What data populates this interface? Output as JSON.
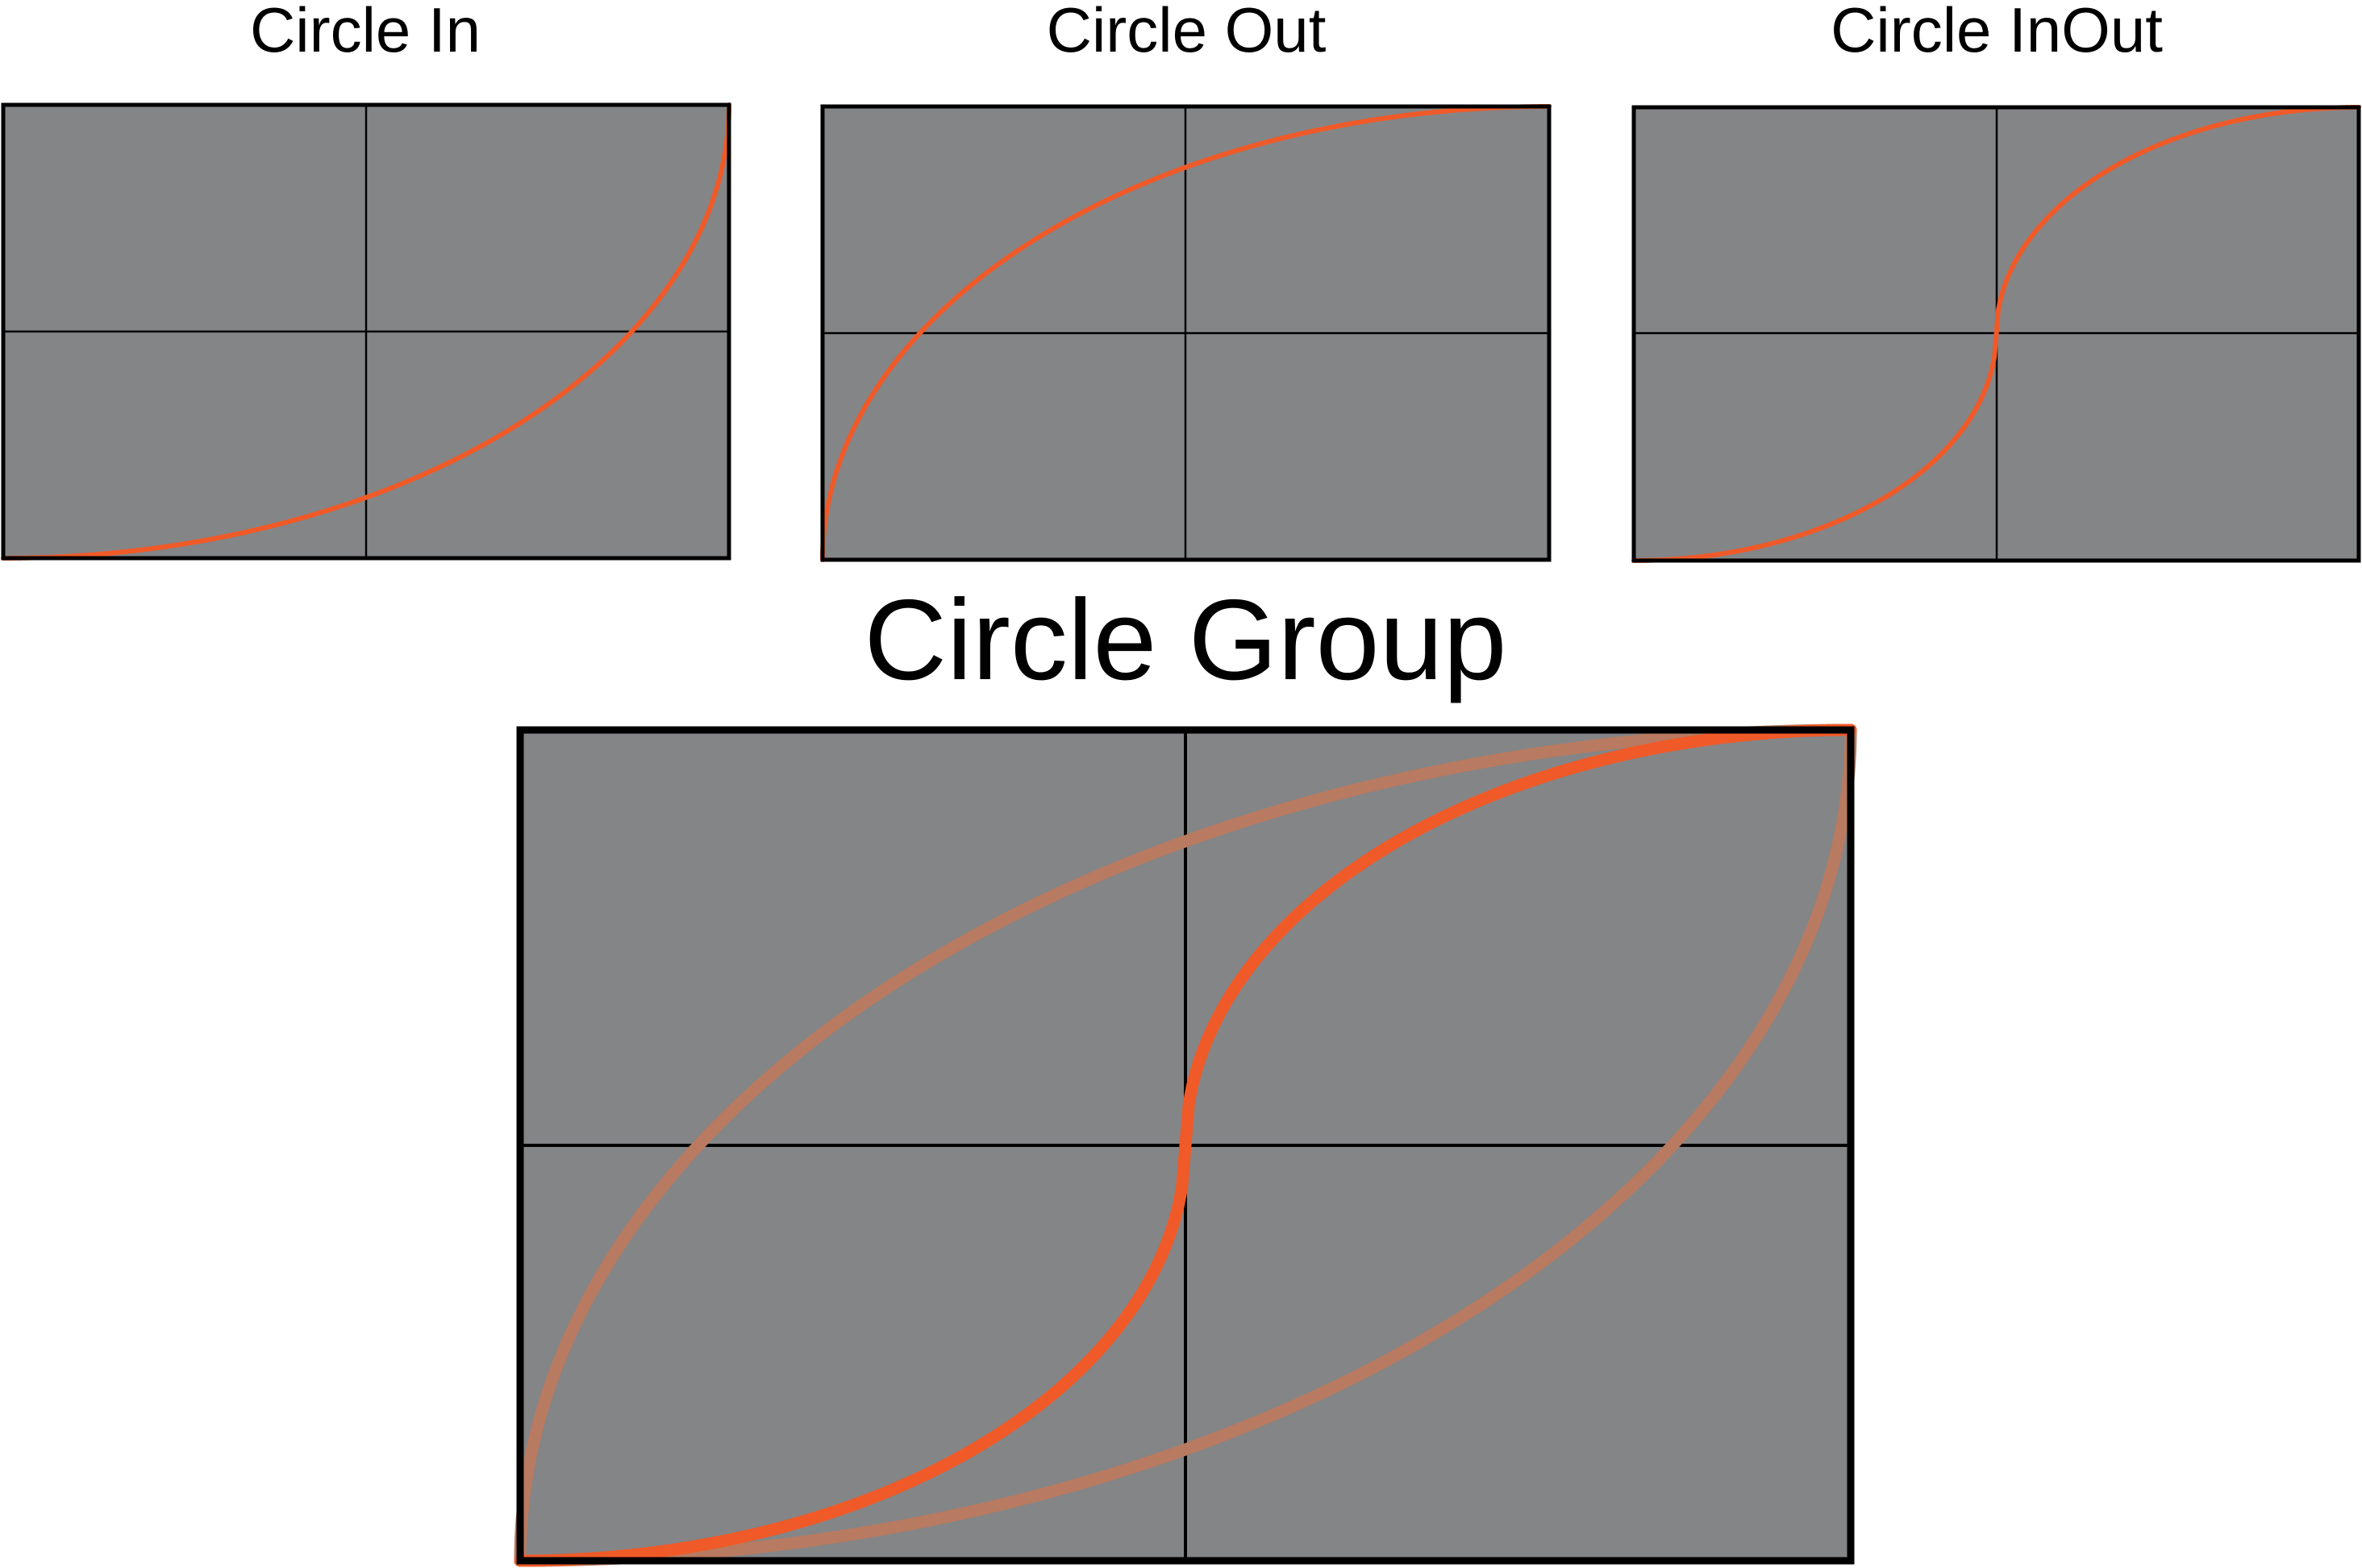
{
  "chart_data": [
    {
      "type": "line",
      "title": "Circle In",
      "xlim": [
        0,
        1
      ],
      "ylim": [
        0,
        1
      ],
      "grid": true,
      "series": [
        {
          "function": "circle-in",
          "color": "#f05a28",
          "x": [
            0,
            0.1,
            0.2,
            0.3,
            0.4,
            0.5,
            0.6,
            0.7,
            0.8,
            0.9,
            1
          ],
          "values": [
            0,
            0.005,
            0.02,
            0.046,
            0.083,
            0.134,
            0.2,
            0.286,
            0.4,
            0.564,
            1
          ]
        }
      ]
    },
    {
      "type": "line",
      "title": "Circle Out",
      "xlim": [
        0,
        1
      ],
      "ylim": [
        0,
        1
      ],
      "grid": true,
      "series": [
        {
          "function": "circle-out",
          "color": "#f05a28",
          "x": [
            0,
            0.1,
            0.2,
            0.3,
            0.4,
            0.5,
            0.6,
            0.7,
            0.8,
            0.9,
            1
          ],
          "values": [
            0,
            0.436,
            0.6,
            0.714,
            0.8,
            0.866,
            0.917,
            0.954,
            0.98,
            0.995,
            1
          ]
        }
      ]
    },
    {
      "type": "line",
      "title": "Circle InOut",
      "xlim": [
        0,
        1
      ],
      "ylim": [
        0,
        1
      ],
      "grid": true,
      "series": [
        {
          "function": "circle-inout",
          "color": "#f05a28",
          "x": [
            0,
            0.1,
            0.2,
            0.3,
            0.4,
            0.5,
            0.6,
            0.7,
            0.8,
            0.9,
            1
          ],
          "values": [
            0,
            0.01,
            0.042,
            0.1,
            0.2,
            0.5,
            0.8,
            0.9,
            0.958,
            0.99,
            1
          ]
        }
      ]
    },
    {
      "type": "line",
      "title": "Circle Group",
      "xlim": [
        0,
        1
      ],
      "ylim": [
        0,
        1
      ],
      "grid": true,
      "series": [
        {
          "function": "circle-in",
          "color": "#b87a60",
          "x": [
            0,
            0.1,
            0.2,
            0.3,
            0.4,
            0.5,
            0.6,
            0.7,
            0.8,
            0.9,
            1
          ],
          "values": [
            0,
            0.005,
            0.02,
            0.046,
            0.083,
            0.134,
            0.2,
            0.286,
            0.4,
            0.564,
            1
          ]
        },
        {
          "function": "circle-out",
          "color": "#b87a60",
          "x": [
            0,
            0.1,
            0.2,
            0.3,
            0.4,
            0.5,
            0.6,
            0.7,
            0.8,
            0.9,
            1
          ],
          "values": [
            0,
            0.436,
            0.6,
            0.714,
            0.8,
            0.866,
            0.917,
            0.954,
            0.98,
            0.995,
            1
          ]
        },
        {
          "function": "circle-inout",
          "color": "#f05a28",
          "x": [
            0,
            0.1,
            0.2,
            0.3,
            0.4,
            0.5,
            0.6,
            0.7,
            0.8,
            0.9,
            1
          ],
          "values": [
            0,
            0.01,
            0.042,
            0.1,
            0.2,
            0.5,
            0.8,
            0.9,
            0.958,
            0.99,
            1
          ]
        }
      ]
    }
  ],
  "colors": {
    "background": "#ffffff",
    "plot_fill": "#848587",
    "frame": "#000000",
    "grid": "#000000"
  }
}
